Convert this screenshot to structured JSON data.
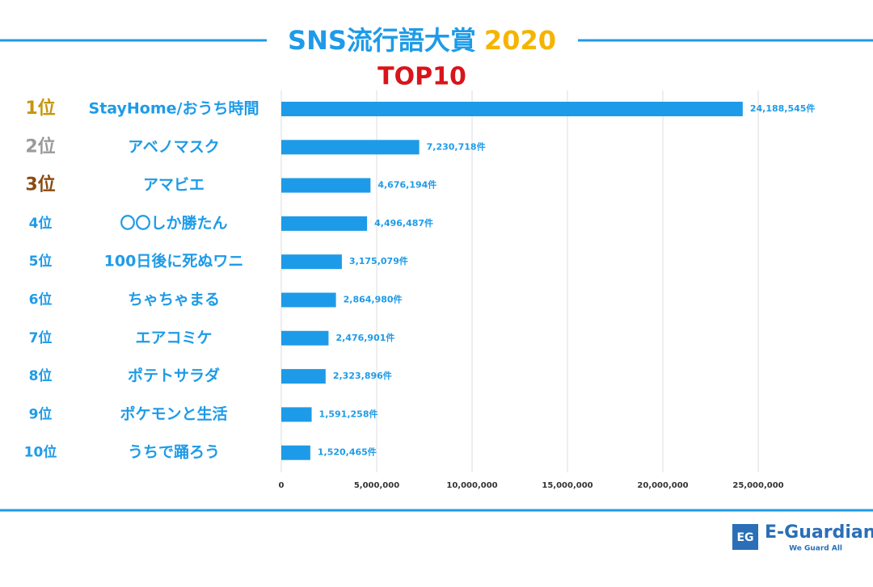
{
  "chart_data": {
    "type": "bar",
    "orientation": "horizontal",
    "title": "SNS流行語大賞",
    "title_year": "2020",
    "subtitle": "TOP10",
    "title_color": "#1e9be8",
    "year_color": "#f5b400",
    "subtitle_color": "#d9141b",
    "ranks": [
      "1位",
      "2位",
      "3位",
      "4位",
      "5位",
      "6位",
      "7位",
      "8位",
      "9位",
      "10位"
    ],
    "rank_colors": [
      "#c8960c",
      "#9a9a9a",
      "#8a4a12",
      "#1e9be8",
      "#1e9be8",
      "#1e9be8",
      "#1e9be8",
      "#1e9be8",
      "#1e9be8",
      "#1e9be8"
    ],
    "categories": [
      "StayHome/おうち時間",
      "アベノマスク",
      "アマビエ",
      "〇〇しか勝たん",
      "100日後に死ぬワニ",
      "ちゃちゃまる",
      "エアコミケ",
      "ポテトサラダ",
      "ポケモンと生活",
      "うちで踊ろう"
    ],
    "values": [
      24188545,
      7230718,
      4676194,
      4496487,
      3175079,
      2864980,
      2476901,
      2323896,
      1591258,
      1520465
    ],
    "value_labels": [
      "24,188,545件",
      "7,230,718件",
      "4,676,194件",
      "4,496,487件",
      "3,175,079件",
      "2,864,980件",
      "2,476,901件",
      "2,323,896件",
      "1,591,258件",
      "1,520,465件"
    ],
    "color": "#1e9be8",
    "xlim": [
      0,
      25000000
    ],
    "xticks": [
      0,
      {
        "value": 5000000,
        "label": "5,000,000"
      },
      {
        "value": 10000000,
        "label": "10,000,000"
      },
      {
        "value": 15000000,
        "label": "15,000,000"
      },
      {
        "value": 20000000,
        "label": "20,000,000"
      },
      {
        "value": 25000000,
        "label": "25,000,000"
      }
    ],
    "grid": true,
    "logo": {
      "icon": "EG",
      "name": "E-Guardian",
      "tagline": "We Guard All"
    }
  }
}
